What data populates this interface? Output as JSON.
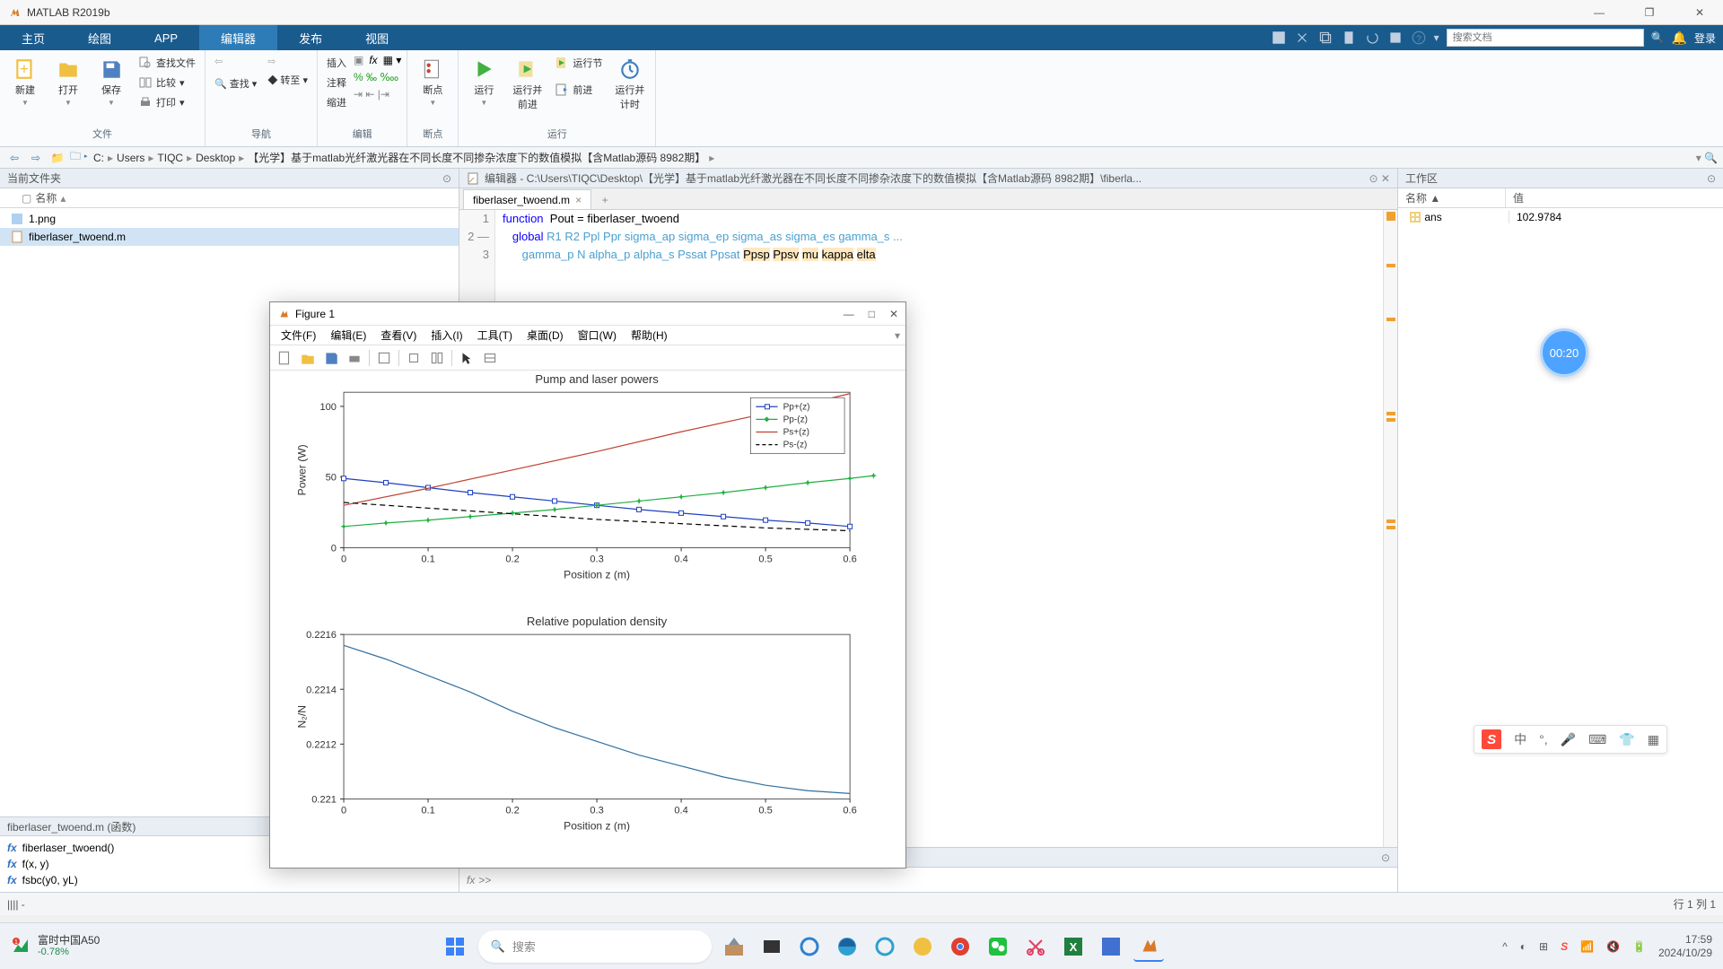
{
  "title_bar": {
    "text": "MATLAB R2019b"
  },
  "tabs": {
    "items": [
      "主页",
      "绘图",
      "APP",
      "编辑器",
      "发布",
      "视图"
    ],
    "active_index": 3
  },
  "search_docs_placeholder": "搜索文档",
  "login_label": "登录",
  "ribbon": {
    "file": {
      "label": "文件",
      "new": "新建",
      "open": "打开",
      "save": "保存",
      "find_files": "查找文件",
      "compare": "比较",
      "print": "打印"
    },
    "nav": {
      "label": "导航",
      "goto": "转至"
    },
    "edit": {
      "label": "编辑",
      "insert": "插入",
      "comment": "注释",
      "indent": "缩进"
    },
    "breakpoints": {
      "label": "断点",
      "bp": "断点"
    },
    "run": {
      "label": "运行",
      "run": "运行",
      "run_advance": "运行并\n前进",
      "run_section": "运行节",
      "advance": "前进",
      "run_time": "运行并\n计时"
    }
  },
  "breadcrumbs": [
    "C:",
    "Users",
    "TIQC",
    "Desktop",
    "【光学】基于matlab光纤激光器在不同长度不同掺杂浓度下的数值模拟【含Matlab源码 8982期】"
  ],
  "current_folder": {
    "header": "当前文件夹",
    "name_col": "名称",
    "files": [
      {
        "name": "1.png",
        "type": "image"
      },
      {
        "name": "fiberlaser_twoend.m",
        "type": "m",
        "selected": true
      }
    ]
  },
  "details": {
    "header": "fiberlaser_twoend.m  (函数)",
    "functions": [
      "fiberlaser_twoend()",
      "f(x, y)",
      "fsbc(y0, yL)"
    ]
  },
  "editor": {
    "title_prefix": "编辑器 - C:\\Users\\TIQC\\Desktop\\【光学】基于matlab光纤激光器在不同长度不同掺杂浓度下的数值模拟【含Matlab源码 8982期】\\fiberla...",
    "tab_name": "fiberlaser_twoend.m",
    "lines": [
      {
        "n": "1",
        "html": "<span class='kw'>function</span>  Pout = fiberlaser_twoend"
      },
      {
        "n": "2  —",
        "html": "   <span class='kw'>global</span> <span class='var'>R1 R2 Ppl Ppr sigma_ap sigma_ep sigma_as sigma_es gamma_s</span> <span class='cont'>...</span>"
      },
      {
        "n": "3",
        "html": "      <span class='var'>gamma_p N alpha_p alpha_s Pssat Ppsat</span> <span class='hl'>Ppsp</span> <span class='hl'>Ppsv</span> <span class='hl'>mu</span> <span class='hl'>kappa</span> <span class='hl'>elta</span>"
      }
    ]
  },
  "workspace": {
    "header": "工作区",
    "cols": [
      "名称 ▲",
      "值"
    ],
    "rows": [
      {
        "name": "ans",
        "value": "102.9784"
      }
    ]
  },
  "status": {
    "left": "|||| -",
    "right": "行 1   列 1"
  },
  "cmd_prompt": "fx >>",
  "figure": {
    "title": "Figure 1",
    "menus": [
      "文件(F)",
      "编辑(E)",
      "查看(V)",
      "插入(I)",
      "工具(T)",
      "桌面(D)",
      "窗口(W)",
      "帮助(H)"
    ],
    "chart1": {
      "type": "line",
      "title": "Pump and laser powers",
      "xlabel": "Position z (m)",
      "ylabel": "Power (W)",
      "xlim": [
        0,
        0.6
      ],
      "ylim": [
        0,
        110
      ],
      "xticks": [
        0,
        0.1,
        0.2,
        0.3,
        0.4,
        0.5,
        0.6
      ],
      "yticks": [
        0,
        50,
        100
      ],
      "grid_off": true,
      "background_color": "#ffffff",
      "legend": [
        "Pp+(z)",
        "Pp-(z)",
        "Ps+(z)",
        "Ps-(z)"
      ],
      "series": [
        {
          "name": "Pp+(z)",
          "color": "#2040c0",
          "marker": "square",
          "style": "solid",
          "x": [
            0,
            0.05,
            0.1,
            0.15,
            0.2,
            0.25,
            0.3,
            0.35,
            0.4,
            0.45,
            0.5,
            0.55,
            0.6
          ],
          "y": [
            49,
            46,
            42.5,
            39,
            36,
            33,
            30,
            27,
            24.5,
            22,
            19.5,
            17.5,
            15
          ]
        },
        {
          "name": "Pp-(z)",
          "color": "#20b040",
          "marker": "star",
          "style": "solid",
          "x": [
            0,
            0.05,
            0.1,
            0.15,
            0.2,
            0.25,
            0.3,
            0.35,
            0.4,
            0.45,
            0.5,
            0.55,
            0.6,
            0.628
          ],
          "y": [
            15,
            17.5,
            19.5,
            22,
            24.5,
            27,
            30,
            33,
            36,
            39,
            42.5,
            46,
            49,
            51
          ]
        },
        {
          "name": "Ps+(z)",
          "color": "#c04030",
          "marker": "none",
          "style": "solid",
          "x": [
            0,
            0.1,
            0.2,
            0.3,
            0.4,
            0.5,
            0.6
          ],
          "y": [
            30,
            42,
            55,
            68,
            82,
            95,
            109
          ]
        },
        {
          "name": "Ps-(z)",
          "color": "#000000",
          "marker": "none",
          "style": "dashed",
          "x": [
            0,
            0.1,
            0.2,
            0.3,
            0.4,
            0.5,
            0.6
          ],
          "y": [
            32,
            28,
            24,
            20,
            17,
            14,
            12
          ]
        }
      ]
    },
    "chart2": {
      "type": "line",
      "title": "Relative population density",
      "xlabel": "Position z (m)",
      "ylabel": "N₂/N",
      "xlim": [
        0,
        0.6
      ],
      "ylim": [
        0.221,
        0.2216
      ],
      "xticks": [
        0,
        0.1,
        0.2,
        0.3,
        0.4,
        0.5,
        0.6
      ],
      "yticks": [
        0.221,
        0.2212,
        0.2214,
        0.2216
      ],
      "background_color": "#ffffff",
      "series": [
        {
          "name": "N2N",
          "color": "#3070a0",
          "style": "solid",
          "x": [
            0,
            0.05,
            0.1,
            0.15,
            0.2,
            0.25,
            0.3,
            0.35,
            0.4,
            0.45,
            0.5,
            0.55,
            0.6
          ],
          "y": [
            0.22156,
            0.22151,
            0.22145,
            0.22139,
            0.22132,
            0.22126,
            0.22121,
            0.22116,
            0.22112,
            0.22108,
            0.22105,
            0.22103,
            0.22102
          ]
        }
      ]
    }
  },
  "timer": "00:20",
  "ime_cn": "中",
  "taskbar": {
    "stock": {
      "name": "富时中国A50",
      "change": "-0.78%"
    },
    "search_placeholder": "搜索",
    "clock": {
      "time": "17:59",
      "date": "2024/10/29"
    }
  }
}
